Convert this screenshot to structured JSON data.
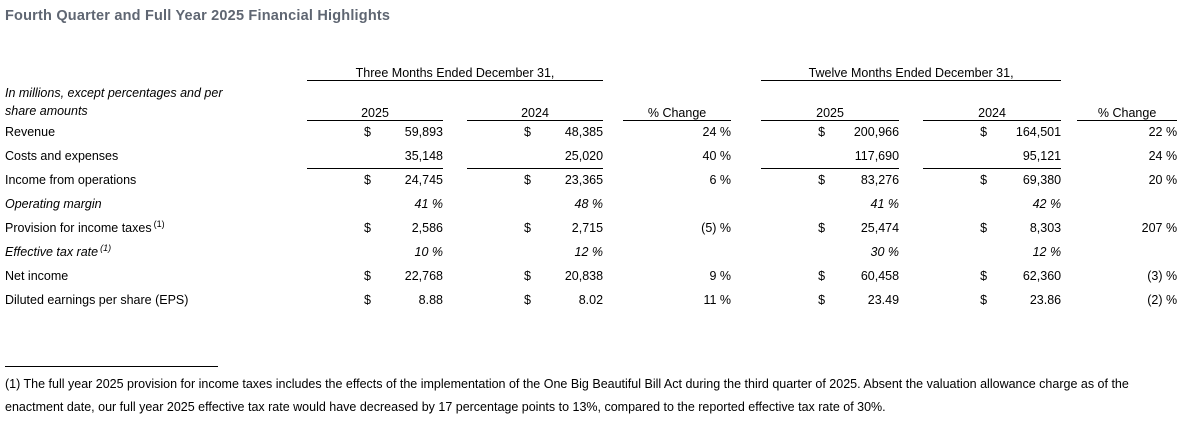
{
  "title": "Fourth Quarter and Full Year 2025 Financial Highlights",
  "table": {
    "units_note_line1": "In millions, except percentages and per",
    "units_note_line2": "share amounts",
    "dollar_sign": "$",
    "groups": [
      {
        "label": "Three Months Ended December 31,"
      },
      {
        "label": "Twelve Months Ended December 31,"
      }
    ],
    "col_headers": {
      "y2025": "2025",
      "y2024": "2024",
      "pct_change": "% Change"
    },
    "rows": [
      {
        "label": "Revenue",
        "sup": "",
        "italic": false,
        "dollar": true,
        "subtotal_rule": false,
        "values": [
          "59,893",
          "48,385",
          "24 %",
          "200,966",
          "164,501",
          "22 %"
        ]
      },
      {
        "label": "Costs and expenses",
        "sup": "",
        "italic": false,
        "dollar": false,
        "subtotal_rule": true,
        "values": [
          "35,148",
          "25,020",
          "40 %",
          "117,690",
          "95,121",
          "24 %"
        ]
      },
      {
        "label": "Income from operations",
        "sup": "",
        "italic": false,
        "dollar": true,
        "subtotal_rule": false,
        "values": [
          "24,745",
          "23,365",
          "6 %",
          "83,276",
          "69,380",
          "20 %"
        ]
      },
      {
        "label": "Operating margin",
        "sup": "",
        "italic": true,
        "dollar": false,
        "subtotal_rule": false,
        "values": [
          "41 %",
          "48 %",
          "",
          "41 %",
          "42 %",
          ""
        ]
      },
      {
        "label": "Provision for income taxes",
        "sup": "(1)",
        "italic": false,
        "dollar": true,
        "subtotal_rule": false,
        "values": [
          "2,586",
          "2,715",
          "(5) %",
          "25,474",
          "8,303",
          "207 %"
        ]
      },
      {
        "label": "Effective tax rate",
        "sup": "(1)",
        "italic": true,
        "dollar": false,
        "subtotal_rule": false,
        "values": [
          "10 %",
          "12 %",
          "",
          "30 %",
          "12 %",
          ""
        ]
      },
      {
        "label": "Net income",
        "sup": "",
        "italic": false,
        "dollar": true,
        "subtotal_rule": false,
        "values": [
          "22,768",
          "20,838",
          "9 %",
          "60,458",
          "62,360",
          "(3) %"
        ]
      },
      {
        "label": "Diluted earnings per share (EPS)",
        "sup": "",
        "italic": false,
        "dollar": true,
        "subtotal_rule": false,
        "values": [
          "8.88",
          "8.02",
          "11 %",
          "23.49",
          "23.86",
          "(2) %"
        ]
      }
    ]
  },
  "footnote": {
    "text": "(1) The full year 2025 provision for income taxes includes the effects of the implementation of the One Big Beautiful Bill Act during the third quarter of 2025. Absent the valuation allowance charge as of the enactment date, our full year 2025 effective tax rate would have decreased by 17 percentage points to 13%, compared to the reported effective tax rate of 30%."
  }
}
